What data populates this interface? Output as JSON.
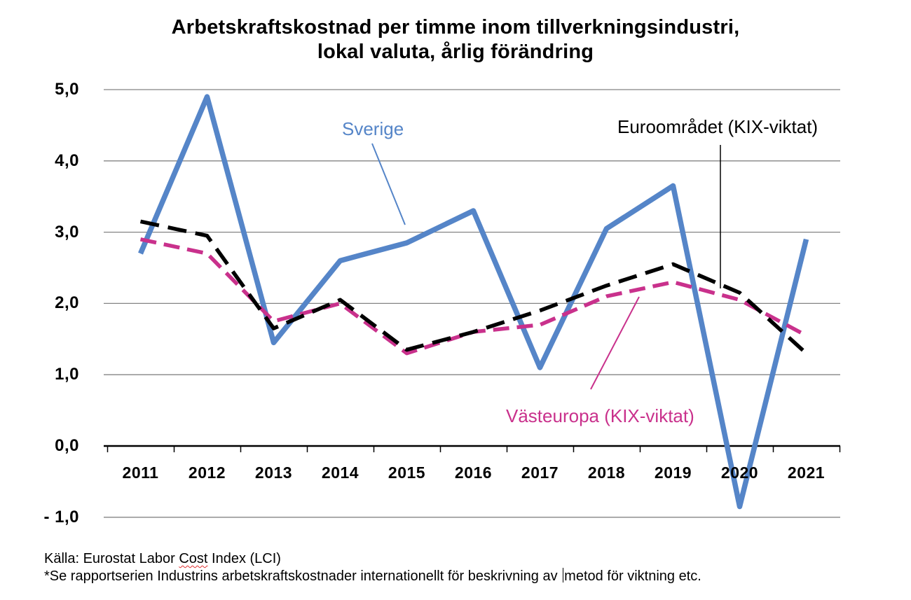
{
  "title": {
    "line1": "Arbetskraftskostnad per timme inom tillverkningsindustri,",
    "line2": "lokal valuta, årlig förändring"
  },
  "footer": {
    "line1_pre": "Källa: Eurostat Labor ",
    "line1_misspelled": "Cost",
    "line1_post": " Index (LCI)",
    "line2_before_caret": "*Se rapportserien Industrins arbetskraftskostnader internationellt för beskrivning av ",
    "line2_after_caret": "metod för viktning etc."
  },
  "chart_data": {
    "type": "line",
    "categories": [
      "2011",
      "2012",
      "2013",
      "2014",
      "2015",
      "2016",
      "2017",
      "2018",
      "2019",
      "2020",
      "2021"
    ],
    "series": [
      {
        "name": "Sverige",
        "color": "#5585C8",
        "style": "solid",
        "values": [
          2.7,
          4.9,
          1.45,
          2.6,
          2.85,
          3.3,
          1.1,
          3.05,
          3.65,
          -0.85,
          2.9
        ]
      },
      {
        "name": "Västeuropa (KIX-viktat)",
        "color": "#C9318C",
        "style": "dashed",
        "values": [
          2.9,
          2.7,
          1.75,
          2.0,
          1.3,
          1.6,
          1.7,
          2.1,
          2.3,
          2.05,
          1.55
        ]
      },
      {
        "name": "Euroområdet (KIX-viktat)",
        "color": "#000000",
        "style": "dashed",
        "values": [
          3.15,
          2.95,
          1.65,
          2.05,
          1.35,
          1.6,
          1.9,
          2.25,
          2.55,
          2.15,
          1.3
        ]
      }
    ],
    "y_ticks": [
      {
        "label": "5,0",
        "value": 5
      },
      {
        "label": "4,0",
        "value": 4
      },
      {
        "label": "3,0",
        "value": 3
      },
      {
        "label": "2,0",
        "value": 2
      },
      {
        "label": "1,0",
        "value": 1
      },
      {
        "label": "0,0",
        "value": 0
      },
      {
        "label": "- 1,0",
        "value": -1
      }
    ],
    "ylim": [
      -1,
      5
    ],
    "xlabel": "",
    "ylabel": "",
    "grid": "horizontal",
    "gridline_color": "#848484",
    "legend_position": "data-callouts"
  }
}
